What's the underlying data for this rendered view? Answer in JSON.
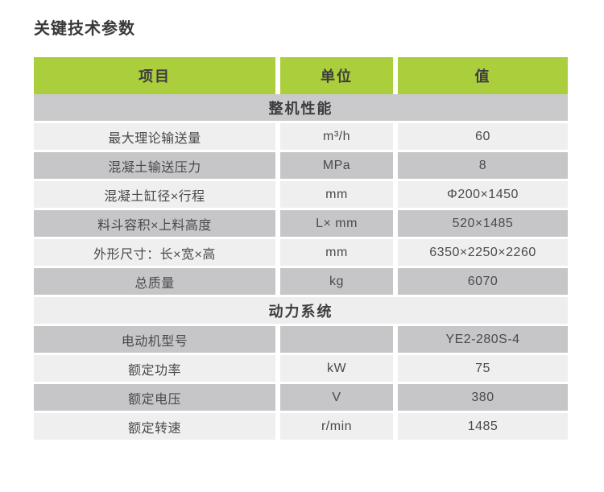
{
  "title": "关键技术参数",
  "colors": {
    "header_green": "#abce3c",
    "section_gray_dark": "#cacacc",
    "section_gray_light": "#eeeeee",
    "row_dark": "#c6c6c8",
    "row_light": "#efefef",
    "title_text": "#39393b",
    "body_text": "#4a4a4e"
  },
  "table": {
    "headers": [
      "项目",
      "单位",
      "值"
    ],
    "rows": [
      {
        "type": "section",
        "label": "整机性能"
      },
      {
        "type": "data",
        "item": "最大理论输送量",
        "unit": "m³/h",
        "value": "60"
      },
      {
        "type": "data",
        "item": "混凝土输送压力",
        "unit": "MPa",
        "value": "8"
      },
      {
        "type": "data",
        "item": "混凝土缸径×行程",
        "unit": "mm",
        "value": "Φ200×1450"
      },
      {
        "type": "data",
        "item": "料斗容积×上料高度",
        "unit": "L× mm",
        "value": "520×1485"
      },
      {
        "type": "data",
        "item": "外形尺寸：长×宽×高",
        "unit": "mm",
        "value": "6350×2250×2260"
      },
      {
        "type": "data",
        "item": "总质量",
        "unit": "kg",
        "value": "6070"
      },
      {
        "type": "section",
        "label": "动力系统"
      },
      {
        "type": "data",
        "item": "电动机型号",
        "unit": "",
        "value": "YE2-280S-4"
      },
      {
        "type": "data",
        "item": "额定功率",
        "unit": "kW",
        "value": "75"
      },
      {
        "type": "data",
        "item": "额定电压",
        "unit": "V",
        "value": "380"
      },
      {
        "type": "data",
        "item": "额定转速",
        "unit": "r/min",
        "value": "1485"
      }
    ]
  }
}
